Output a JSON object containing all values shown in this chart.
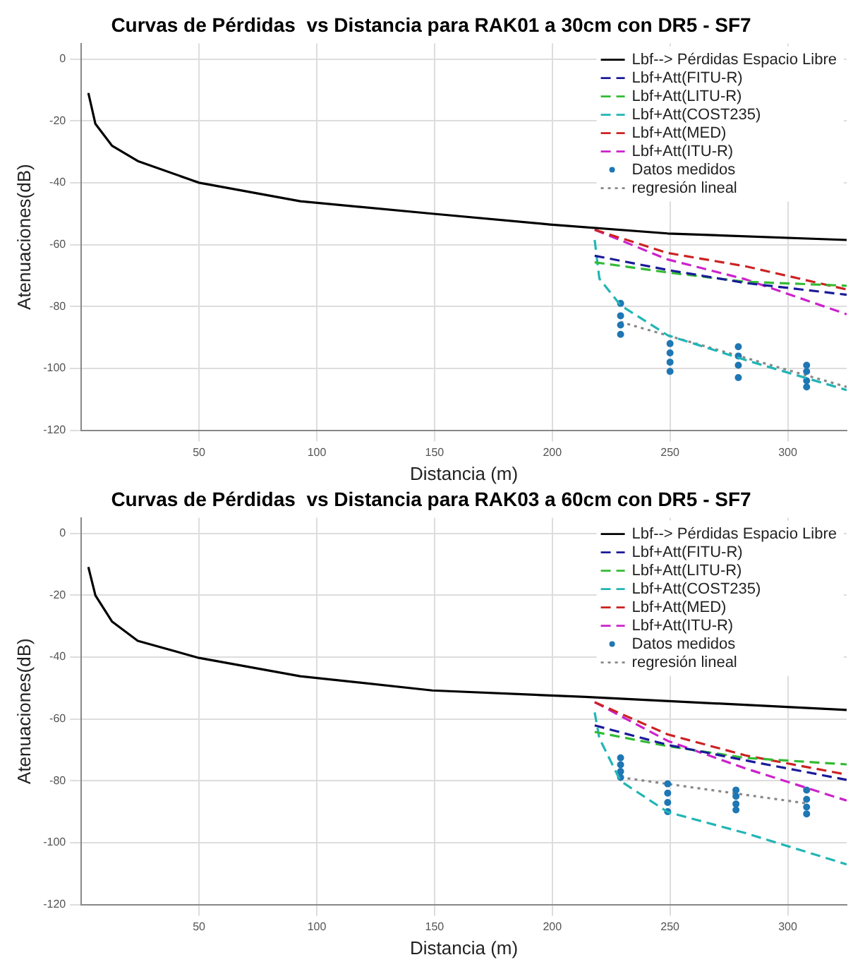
{
  "chart_data": [
    {
      "type": "line",
      "title": "Curvas de Pérdidas  vs Distancia para RAK01 a 30cm con DR5 - SF7",
      "xlabel": "Distancia (m)",
      "ylabel": "Atenuaciones(dB)",
      "xlim": [
        0,
        325
      ],
      "xticks": [
        50,
        100,
        150,
        200,
        250,
        300
      ],
      "ylim": [
        -120,
        5
      ],
      "yticks": [
        0,
        -20,
        -40,
        -60,
        -80,
        -100,
        -120
      ],
      "grid": true,
      "legend": "top right",
      "series": [
        {
          "name": "Lbf--> Pérdidas Espacio Libre",
          "color": "#000000",
          "line_style": "solid",
          "x": [
            3,
            6,
            13,
            24,
            50,
            93,
            149,
            199,
            249,
            325
          ],
          "values": [
            -11,
            -21,
            -28,
            -33,
            -40,
            -46,
            -50,
            -53.5,
            -56.4,
            -58.5
          ]
        },
        {
          "name": "Lbf+Att(FITU-R)",
          "color": "#1a1a99",
          "line_style": "dashed",
          "x": [
            218,
            249,
            282,
            325
          ],
          "values": [
            -63.6,
            -68.2,
            -72.4,
            -76.2
          ]
        },
        {
          "name": "Lbf+Att(LITU-R)",
          "color": "#33bb33",
          "line_style": "dashed",
          "x": [
            218,
            249,
            282,
            325
          ],
          "values": [
            -65.7,
            -69,
            -72,
            -73.3
          ]
        },
        {
          "name": "Lbf+Att(COST235)",
          "color": "#22b5b5",
          "line_style": "dashed",
          "x": [
            218,
            220,
            229,
            249,
            282,
            325
          ],
          "values": [
            -58.5,
            -71,
            -79.6,
            -89.3,
            -97.3,
            -107
          ]
        },
        {
          "name": "Lbf+Att(MED)",
          "color": "#cc2222",
          "line_style": "dashed",
          "x": [
            218,
            249,
            282,
            325
          ],
          "values": [
            -55.2,
            -62.7,
            -67,
            -74.5
          ]
        },
        {
          "name": "Lbf+Att(ITU-R)",
          "color": "#cc22cc",
          "line_style": "dashed",
          "x": [
            218,
            249,
            282,
            325
          ],
          "values": [
            -55.2,
            -64.8,
            -71.2,
            -82.5
          ]
        },
        {
          "name": "Datos medidos",
          "type": "scatter",
          "marker": "circle",
          "color": "#1f77b4",
          "x": [
            229,
            229,
            229,
            229,
            250,
            250,
            250,
            250,
            279,
            279,
            279,
            279,
            308,
            308,
            308,
            308
          ],
          "values": [
            -79,
            -83,
            -86,
            -89,
            -92,
            -95,
            -98,
            -101,
            -93,
            -96,
            -99,
            -103,
            -99,
            -101,
            -104,
            -106
          ]
        },
        {
          "name": "regresión lineal",
          "color": "#888888",
          "line_style": "dotted",
          "x": [
            229,
            325
          ],
          "values": [
            -85,
            -106
          ]
        }
      ]
    },
    {
      "type": "line",
      "title": "Curvas de Pérdidas  vs Distancia para RAK03 a 60cm con DR5 - SF7",
      "xlabel": "Distancia (m)",
      "ylabel": "Atenuaciones(dB)",
      "xlim": [
        0,
        325
      ],
      "xticks": [
        50,
        100,
        150,
        200,
        250,
        300
      ],
      "ylim": [
        -120,
        5
      ],
      "yticks": [
        0,
        -20,
        -40,
        -60,
        -80,
        -100,
        -120
      ],
      "grid": true,
      "legend": "top right",
      "series": [
        {
          "name": "Lbf--> Pérdidas Espacio Libre",
          "color": "#000000",
          "line_style": "solid",
          "x": [
            3,
            6,
            13,
            24,
            50,
            93,
            149,
            214,
            325
          ],
          "values": [
            -10.9,
            -20.1,
            -28.5,
            -34.8,
            -40.3,
            -46.2,
            -50.8,
            -52.9,
            -57.1
          ]
        },
        {
          "name": "Lbf+Att(FITU-R)",
          "color": "#1a1a99",
          "line_style": "dashed",
          "x": [
            218,
            249,
            282,
            325
          ],
          "values": [
            -62.1,
            -68.4,
            -73.4,
            -79.7
          ]
        },
        {
          "name": "Lbf+Att(LITU-R)",
          "color": "#33bb33",
          "line_style": "dashed",
          "x": [
            218,
            249,
            282,
            325
          ],
          "values": [
            -64.2,
            -68.8,
            -72.6,
            -74.7
          ]
        },
        {
          "name": "Lbf+Att(COST235)",
          "color": "#22b5b5",
          "line_style": "dashed",
          "x": [
            218,
            220,
            229,
            249,
            282,
            325
          ],
          "values": [
            -57.9,
            -66.3,
            -80.1,
            -90.1,
            -96.9,
            -107
          ]
        },
        {
          "name": "Lbf+Att(MED)",
          "color": "#cc2222",
          "line_style": "dashed",
          "x": [
            218,
            249,
            282,
            325
          ],
          "values": [
            -54.6,
            -65,
            -71.8,
            -78
          ]
        },
        {
          "name": "Lbf+Att(ITU-R)",
          "color": "#cc22cc",
          "line_style": "dashed",
          "x": [
            218,
            249,
            282,
            325
          ],
          "values": [
            -54.6,
            -67.1,
            -76,
            -86.4
          ]
        },
        {
          "name": "Datos medidos",
          "type": "scatter",
          "marker": "circle",
          "color": "#1f77b4",
          "x": [
            229,
            229,
            229,
            229,
            249,
            249,
            249,
            249,
            278,
            278,
            278,
            278,
            308,
            308,
            308,
            308
          ],
          "values": [
            -72.6,
            -74.8,
            -77,
            -78.9,
            -81,
            -84,
            -87,
            -90,
            -83,
            -85,
            -87.5,
            -89.4,
            -83,
            -86,
            -88.5,
            -90.7
          ]
        },
        {
          "name": "regresión lineal",
          "color": "#888888",
          "line_style": "dotted",
          "x": [
            229,
            308
          ],
          "values": [
            -78.9,
            -87.3
          ]
        }
      ]
    }
  ]
}
